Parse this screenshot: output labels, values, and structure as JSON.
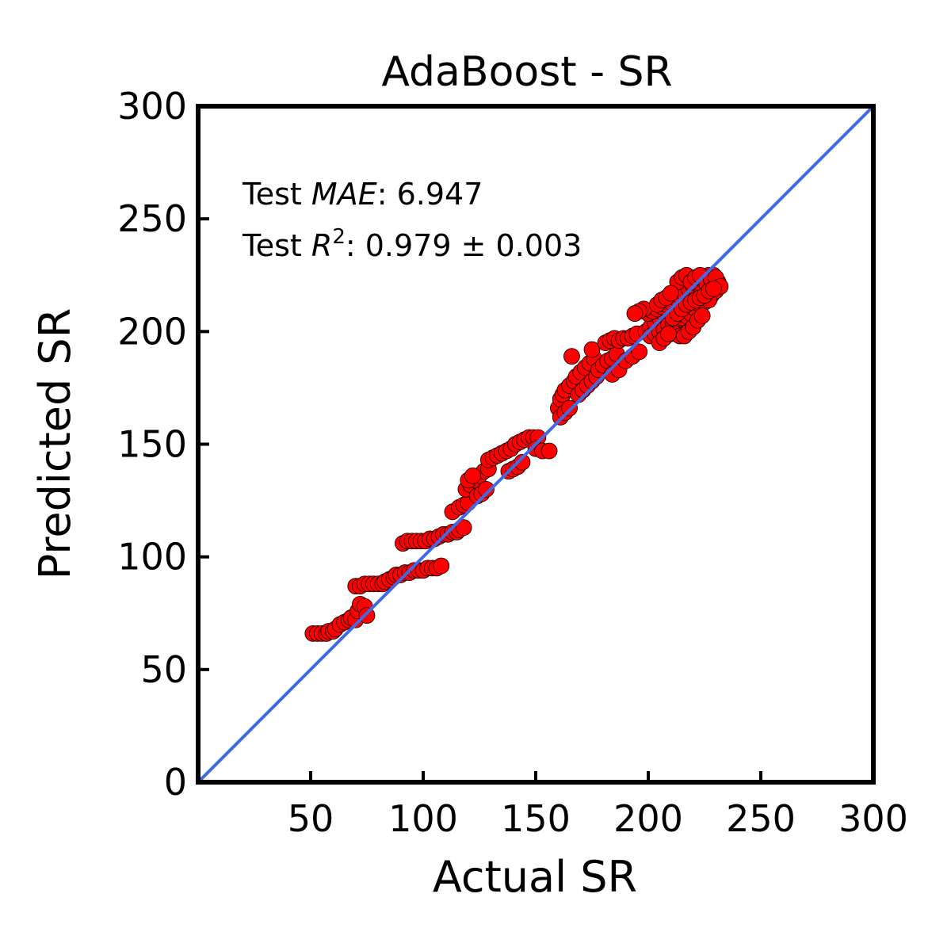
{
  "chart_data": {
    "type": "scatter",
    "title": "AdaBoost - SR",
    "xlabel": "Actual SR",
    "ylabel": "Predicted SR",
    "xlim": [
      0,
      300
    ],
    "ylim": [
      0,
      300
    ],
    "x_ticks": [
      50,
      100,
      150,
      200,
      250,
      300
    ],
    "y_ticks": [
      0,
      50,
      100,
      150,
      200,
      250,
      300
    ],
    "x_tick_labels": [
      "50",
      "100",
      "150",
      "200",
      "250",
      "300"
    ],
    "y_tick_labels": [
      "0",
      "50",
      "100",
      "150",
      "200",
      "250",
      "300"
    ],
    "grid": false,
    "legend": "none",
    "annotations": {
      "mae_prefix": "Test ",
      "mae_symbol": "MAE",
      "mae_value": ": 6.947",
      "r2_prefix": "Test ",
      "r2_symbol": "R",
      "r2_exponent": "2",
      "r2_value": ": 0.979 ± 0.003"
    },
    "reference_line": {
      "from": [
        0,
        0
      ],
      "to": [
        300,
        300
      ],
      "color": "#4169E1"
    },
    "marker_color": "#FF0000",
    "marker_edge_color": "#000000",
    "points": [
      [
        51,
        66
      ],
      [
        53,
        66
      ],
      [
        55,
        66
      ],
      [
        57,
        66
      ],
      [
        58,
        67
      ],
      [
        60,
        67
      ],
      [
        61,
        68
      ],
      [
        63,
        70
      ],
      [
        65,
        71
      ],
      [
        67,
        72
      ],
      [
        68,
        73
      ],
      [
        70,
        72
      ],
      [
        71,
        76
      ],
      [
        72,
        79
      ],
      [
        74,
        78
      ],
      [
        75,
        74
      ],
      [
        70,
        87
      ],
      [
        72,
        87
      ],
      [
        74,
        88
      ],
      [
        76,
        88
      ],
      [
        78,
        88
      ],
      [
        80,
        88
      ],
      [
        82,
        88
      ],
      [
        83,
        89
      ],
      [
        85,
        90
      ],
      [
        87,
        91
      ],
      [
        88,
        92
      ],
      [
        90,
        92
      ],
      [
        92,
        93
      ],
      [
        94,
        93
      ],
      [
        96,
        94
      ],
      [
        98,
        94
      ],
      [
        100,
        94
      ],
      [
        102,
        95
      ],
      [
        104,
        95
      ],
      [
        106,
        95
      ],
      [
        108,
        96
      ],
      [
        91,
        106
      ],
      [
        93,
        107
      ],
      [
        95,
        107
      ],
      [
        97,
        107
      ],
      [
        99,
        107
      ],
      [
        101,
        107
      ],
      [
        103,
        108
      ],
      [
        105,
        108
      ],
      [
        107,
        109
      ],
      [
        109,
        110
      ],
      [
        111,
        110
      ],
      [
        113,
        111
      ],
      [
        115,
        111
      ],
      [
        116,
        112
      ],
      [
        118,
        113
      ],
      [
        113,
        120
      ],
      [
        116,
        122
      ],
      [
        118,
        123
      ],
      [
        120,
        124
      ],
      [
        119,
        130
      ],
      [
        121,
        132
      ],
      [
        123,
        134
      ],
      [
        125,
        136
      ],
      [
        127,
        138
      ],
      [
        129,
        139
      ],
      [
        120,
        134
      ],
      [
        122,
        136
      ],
      [
        124,
        127
      ],
      [
        126,
        128
      ],
      [
        128,
        130
      ],
      [
        129,
        143
      ],
      [
        131,
        144
      ],
      [
        133,
        145
      ],
      [
        135,
        146
      ],
      [
        137,
        147
      ],
      [
        139,
        148
      ],
      [
        141,
        150
      ],
      [
        143,
        151
      ],
      [
        145,
        152
      ],
      [
        147,
        153
      ],
      [
        149,
        153
      ],
      [
        151,
        153
      ],
      [
        138,
        138
      ],
      [
        140,
        139
      ],
      [
        142,
        140
      ],
      [
        144,
        142
      ],
      [
        150,
        148
      ],
      [
        153,
        147
      ],
      [
        156,
        147
      ],
      [
        160,
        166
      ],
      [
        161,
        170
      ],
      [
        162,
        172
      ],
      [
        163,
        174
      ],
      [
        165,
        176
      ],
      [
        167,
        178
      ],
      [
        168,
        180
      ],
      [
        170,
        182
      ],
      [
        172,
        184
      ],
      [
        174,
        186
      ],
      [
        176,
        188
      ],
      [
        161,
        162
      ],
      [
        163,
        164
      ],
      [
        165,
        166
      ],
      [
        166,
        189
      ],
      [
        169,
        172
      ],
      [
        171,
        174
      ],
      [
        173,
        176
      ],
      [
        175,
        178
      ],
      [
        177,
        180
      ],
      [
        175,
        192
      ],
      [
        178,
        183
      ],
      [
        180,
        185
      ],
      [
        182,
        187
      ],
      [
        184,
        188
      ],
      [
        186,
        190
      ],
      [
        181,
        195
      ],
      [
        183,
        196
      ],
      [
        185,
        197
      ],
      [
        187,
        196
      ],
      [
        189,
        197
      ],
      [
        191,
        197
      ],
      [
        193,
        198
      ],
      [
        195,
        199
      ],
      [
        184,
        181
      ],
      [
        187,
        183
      ],
      [
        190,
        187
      ],
      [
        193,
        189
      ],
      [
        196,
        191
      ],
      [
        199,
        200
      ],
      [
        201,
        202
      ],
      [
        203,
        204
      ],
      [
        205,
        206
      ],
      [
        207,
        208
      ],
      [
        209,
        210
      ],
      [
        211,
        212
      ],
      [
        213,
        214
      ],
      [
        215,
        216
      ],
      [
        217,
        218
      ],
      [
        219,
        220
      ],
      [
        221,
        222
      ],
      [
        223,
        223
      ],
      [
        225,
        224
      ],
      [
        227,
        225
      ],
      [
        229,
        225
      ],
      [
        231,
        222
      ],
      [
        200,
        208
      ],
      [
        202,
        209
      ],
      [
        204,
        210
      ],
      [
        206,
        211
      ],
      [
        208,
        212
      ],
      [
        210,
        213
      ],
      [
        212,
        215
      ],
      [
        214,
        216
      ],
      [
        216,
        217
      ],
      [
        218,
        219
      ],
      [
        220,
        220
      ],
      [
        222,
        221
      ],
      [
        224,
        219
      ],
      [
        226,
        217
      ],
      [
        228,
        216
      ],
      [
        230,
        218
      ],
      [
        201,
        198
      ],
      [
        203,
        199
      ],
      [
        205,
        200
      ],
      [
        207,
        201
      ],
      [
        209,
        203
      ],
      [
        211,
        204
      ],
      [
        213,
        205
      ],
      [
        215,
        206
      ],
      [
        217,
        207
      ],
      [
        219,
        208
      ],
      [
        221,
        210
      ],
      [
        223,
        212
      ],
      [
        225,
        213
      ],
      [
        227,
        214
      ],
      [
        210,
        199
      ],
      [
        212,
        199
      ],
      [
        214,
        198
      ],
      [
        216,
        198
      ],
      [
        218,
        200
      ],
      [
        220,
        202
      ],
      [
        222,
        205
      ],
      [
        224,
        207
      ],
      [
        213,
        222
      ],
      [
        215,
        224
      ],
      [
        217,
        225
      ],
      [
        219,
        222
      ],
      [
        221,
        224
      ],
      [
        223,
        225
      ],
      [
        226,
        221
      ],
      [
        228,
        223
      ],
      [
        230,
        224
      ],
      [
        232,
        220
      ],
      [
        211,
        206
      ],
      [
        213,
        208
      ],
      [
        215,
        210
      ],
      [
        217,
        212
      ],
      [
        219,
        213
      ],
      [
        221,
        214
      ],
      [
        223,
        215
      ],
      [
        225,
        216
      ],
      [
        227,
        218
      ],
      [
        229,
        219
      ],
      [
        198,
        210
      ],
      [
        196,
        209
      ],
      [
        194,
        208
      ],
      [
        205,
        195
      ],
      [
        207,
        197
      ],
      [
        209,
        199
      ],
      [
        204,
        212
      ],
      [
        206,
        214
      ],
      [
        208,
        215
      ],
      [
        210,
        217
      ]
    ]
  }
}
